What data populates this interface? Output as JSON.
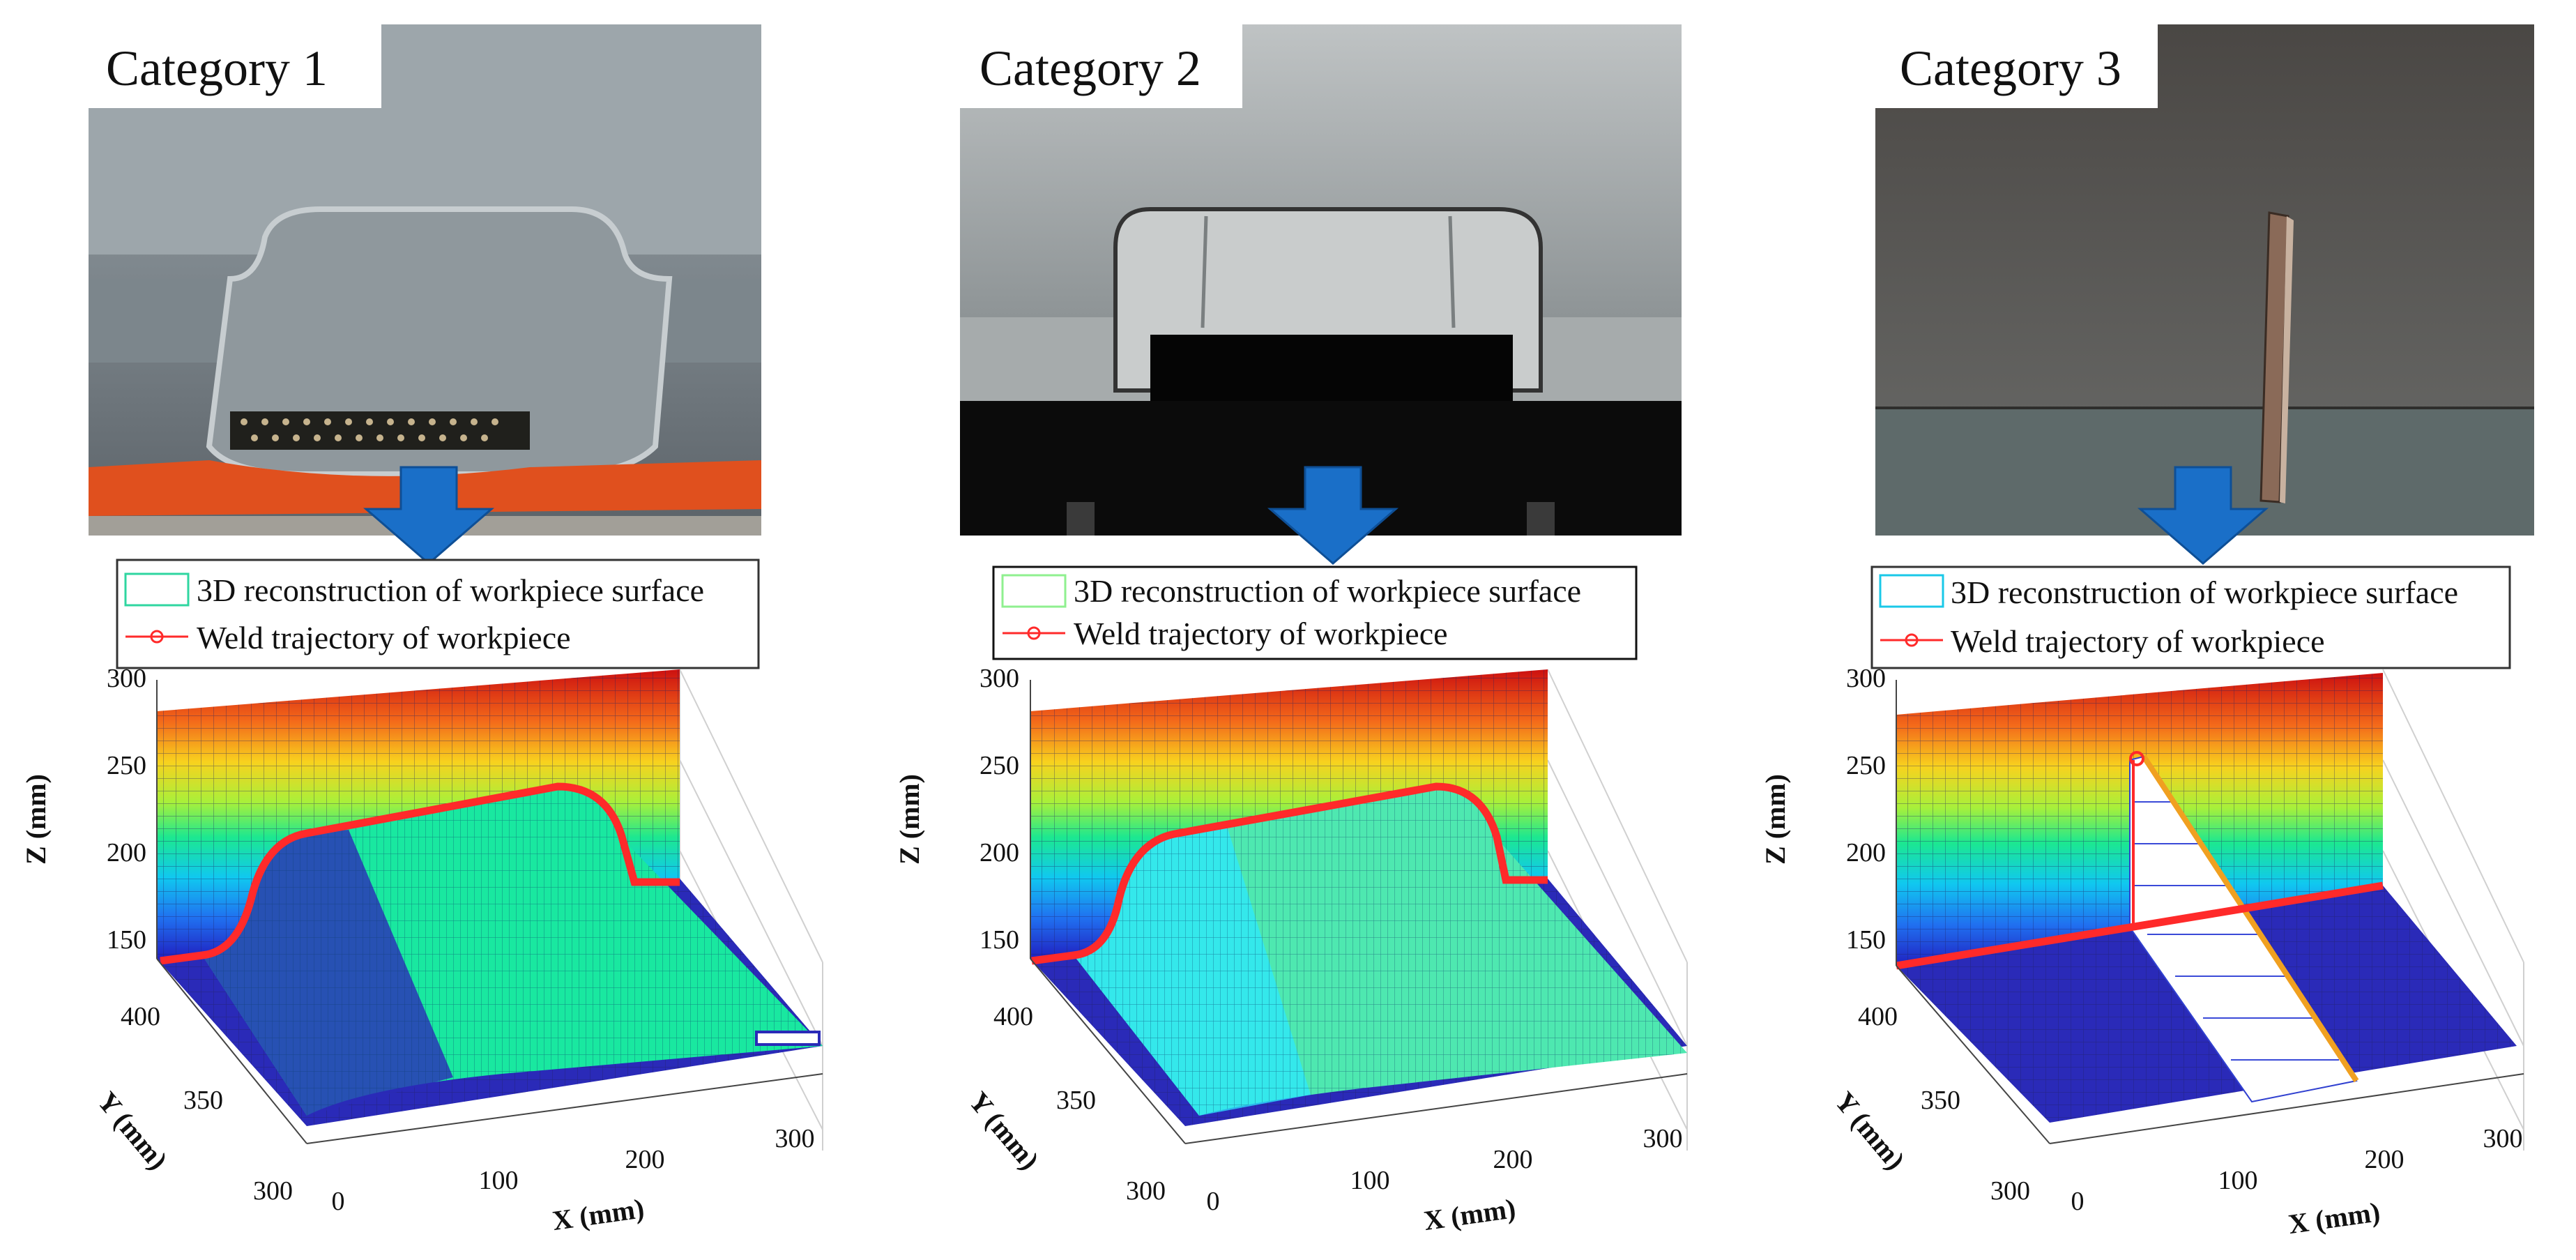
{
  "panels": [
    {
      "category_label": "Category 1",
      "legend": {
        "surface_label": "3D reconstruction of workpiece surface",
        "trajectory_label": "Weld trajectory of workpiece",
        "surface_swatch_color": "#2fd6a0"
      },
      "axes": {
        "z_label": "Z (mm)",
        "y_label": "Y (mm)",
        "x_label": "X (mm)",
        "z_ticks": [
          "300",
          "250",
          "200",
          "150"
        ],
        "y_ticks": [
          "400",
          "350",
          "300"
        ],
        "x_ticks": [
          "0",
          "100",
          "200",
          "300"
        ]
      },
      "photo_subject": "stamped-channel-on-plate"
    },
    {
      "category_label": "Category 2",
      "legend": {
        "surface_label": "3D reconstruction of workpiece surface",
        "trajectory_label": "Weld trajectory of workpiece",
        "surface_swatch_color": "#8ff08f"
      },
      "axes": {
        "z_label": "Z (mm)",
        "y_label": "Y (mm)",
        "x_label": "X (mm)",
        "z_ticks": [
          "300",
          "250",
          "200",
          "150"
        ],
        "y_ticks": [
          "400",
          "350",
          "300"
        ],
        "x_ticks": [
          "0",
          "100",
          "200",
          "300"
        ]
      },
      "photo_subject": "rectangular-tube-on-plate"
    },
    {
      "category_label": "Category 3",
      "legend": {
        "surface_label": "3D reconstruction of workpiece surface",
        "trajectory_label": "Weld trajectory of workpiece",
        "surface_swatch_color": "#19c8e8"
      },
      "axes": {
        "z_label": "Z (mm)",
        "y_label": "Y (mm)",
        "x_label": "X (mm)",
        "z_ticks": [
          "300",
          "250",
          "200",
          "150"
        ],
        "y_ticks": [
          "400",
          "350",
          "300"
        ],
        "x_ticks": [
          "0",
          "100",
          "200",
          "300"
        ]
      },
      "photo_subject": "vertical-plate-on-plate"
    }
  ],
  "colors": {
    "arrow": "#1a6fc8",
    "trajectory": "#ff2a2a",
    "base_plate": "#2a2ab8",
    "work_surface_green": "#19e8a0",
    "work_surface_cyan": "#2ce8ff"
  }
}
